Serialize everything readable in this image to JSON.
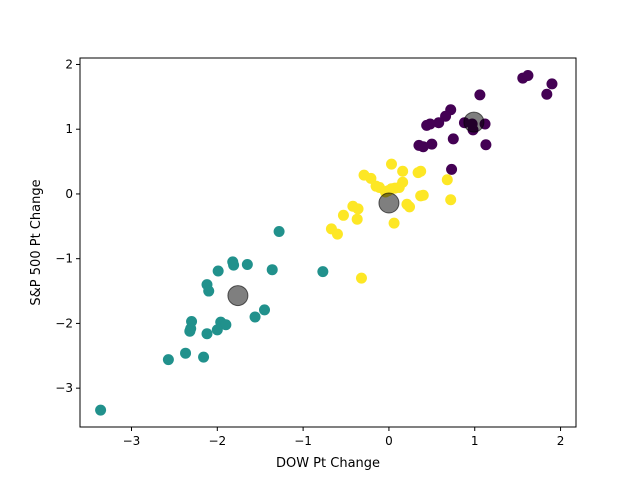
{
  "chart_data": {
    "type": "scatter",
    "title": "",
    "xlabel": "DOW Pt Change",
    "ylabel": "S&P 500 Pt Change",
    "xlim": [
      -3.6,
      2.18
    ],
    "ylim": [
      -3.6,
      2.1
    ],
    "xticks": [
      -3,
      -2,
      -1,
      0,
      1,
      2
    ],
    "yticks": [
      -3,
      -2,
      -1,
      0,
      1,
      2
    ],
    "xtick_labels": [
      "−3",
      "−2",
      "−1",
      "0",
      "1",
      "2"
    ],
    "ytick_labels": [
      "−3",
      "−2",
      "−1",
      "0",
      "1",
      "2"
    ],
    "grid": false,
    "legend": "none",
    "colors": {
      "cluster_purple": "#440154",
      "cluster_teal": "#21918c",
      "cluster_yellow": "#fde725",
      "centroid": "#000000"
    },
    "series": [
      {
        "color": "#440154",
        "points": [
          [
            1.56,
            1.79
          ],
          [
            1.62,
            1.83
          ],
          [
            1.9,
            1.7
          ],
          [
            1.84,
            1.54
          ],
          [
            1.06,
            1.53
          ],
          [
            0.72,
            1.3
          ],
          [
            0.66,
            1.2
          ],
          [
            0.58,
            1.1
          ],
          [
            0.48,
            1.08
          ],
          [
            0.44,
            1.06
          ],
          [
            0.88,
            1.1
          ],
          [
            0.97,
            1.08
          ],
          [
            0.98,
            0.99
          ],
          [
            1.12,
            1.08
          ],
          [
            0.75,
            0.85
          ],
          [
            0.5,
            0.77
          ],
          [
            0.35,
            0.75
          ],
          [
            0.4,
            0.73
          ],
          [
            1.13,
            0.76
          ],
          [
            0.73,
            0.38
          ]
        ]
      },
      {
        "color": "#fde725",
        "points": [
          [
            0.03,
            0.46
          ],
          [
            -0.29,
            0.29
          ],
          [
            -0.21,
            0.24
          ],
          [
            0.16,
            0.35
          ],
          [
            0.34,
            0.33
          ],
          [
            0.37,
            0.35
          ],
          [
            0.68,
            0.22
          ],
          [
            0.16,
            0.18
          ],
          [
            -0.15,
            0.12
          ],
          [
            -0.11,
            0.1
          ],
          [
            0.03,
            0.08
          ],
          [
            0.07,
            0.09
          ],
          [
            0.12,
            0.1
          ],
          [
            -0.01,
            0.05
          ],
          [
            -0.04,
            0.03
          ],
          [
            0.37,
            -0.03
          ],
          [
            0.4,
            -0.02
          ],
          [
            0.72,
            -0.09
          ],
          [
            0.21,
            -0.16
          ],
          [
            0.24,
            -0.2
          ],
          [
            -0.42,
            -0.19
          ],
          [
            -0.36,
            -0.23
          ],
          [
            -0.37,
            -0.39
          ],
          [
            -0.53,
            -0.33
          ],
          [
            -0.67,
            -0.54
          ],
          [
            -0.6,
            -0.62
          ],
          [
            0.06,
            -0.45
          ],
          [
            -0.32,
            -1.3
          ]
        ]
      },
      {
        "color": "#21918c",
        "points": [
          [
            -1.28,
            -0.58
          ],
          [
            -0.77,
            -1.2
          ],
          [
            -1.82,
            -1.05
          ],
          [
            -1.65,
            -1.09
          ],
          [
            -1.81,
            -1.1
          ],
          [
            -1.36,
            -1.17
          ],
          [
            -1.99,
            -1.19
          ],
          [
            -2.12,
            -1.4
          ],
          [
            -2.1,
            -1.5
          ],
          [
            -1.45,
            -1.79
          ],
          [
            -1.56,
            -1.9
          ],
          [
            -2.3,
            -1.97
          ],
          [
            -1.96,
            -1.98
          ],
          [
            -1.9,
            -2.02
          ],
          [
            -2.0,
            -2.1
          ],
          [
            -2.31,
            -2.08
          ],
          [
            -2.32,
            -2.12
          ],
          [
            -2.12,
            -2.16
          ],
          [
            -2.37,
            -2.46
          ],
          [
            -2.16,
            -2.52
          ],
          [
            -2.57,
            -2.56
          ],
          [
            -3.36,
            -3.34
          ]
        ]
      }
    ],
    "centroids": {
      "color": "#000000",
      "points": [
        [
          0.99,
          1.11
        ],
        [
          0.0,
          -0.14
        ],
        [
          -1.76,
          -1.57
        ]
      ]
    }
  }
}
